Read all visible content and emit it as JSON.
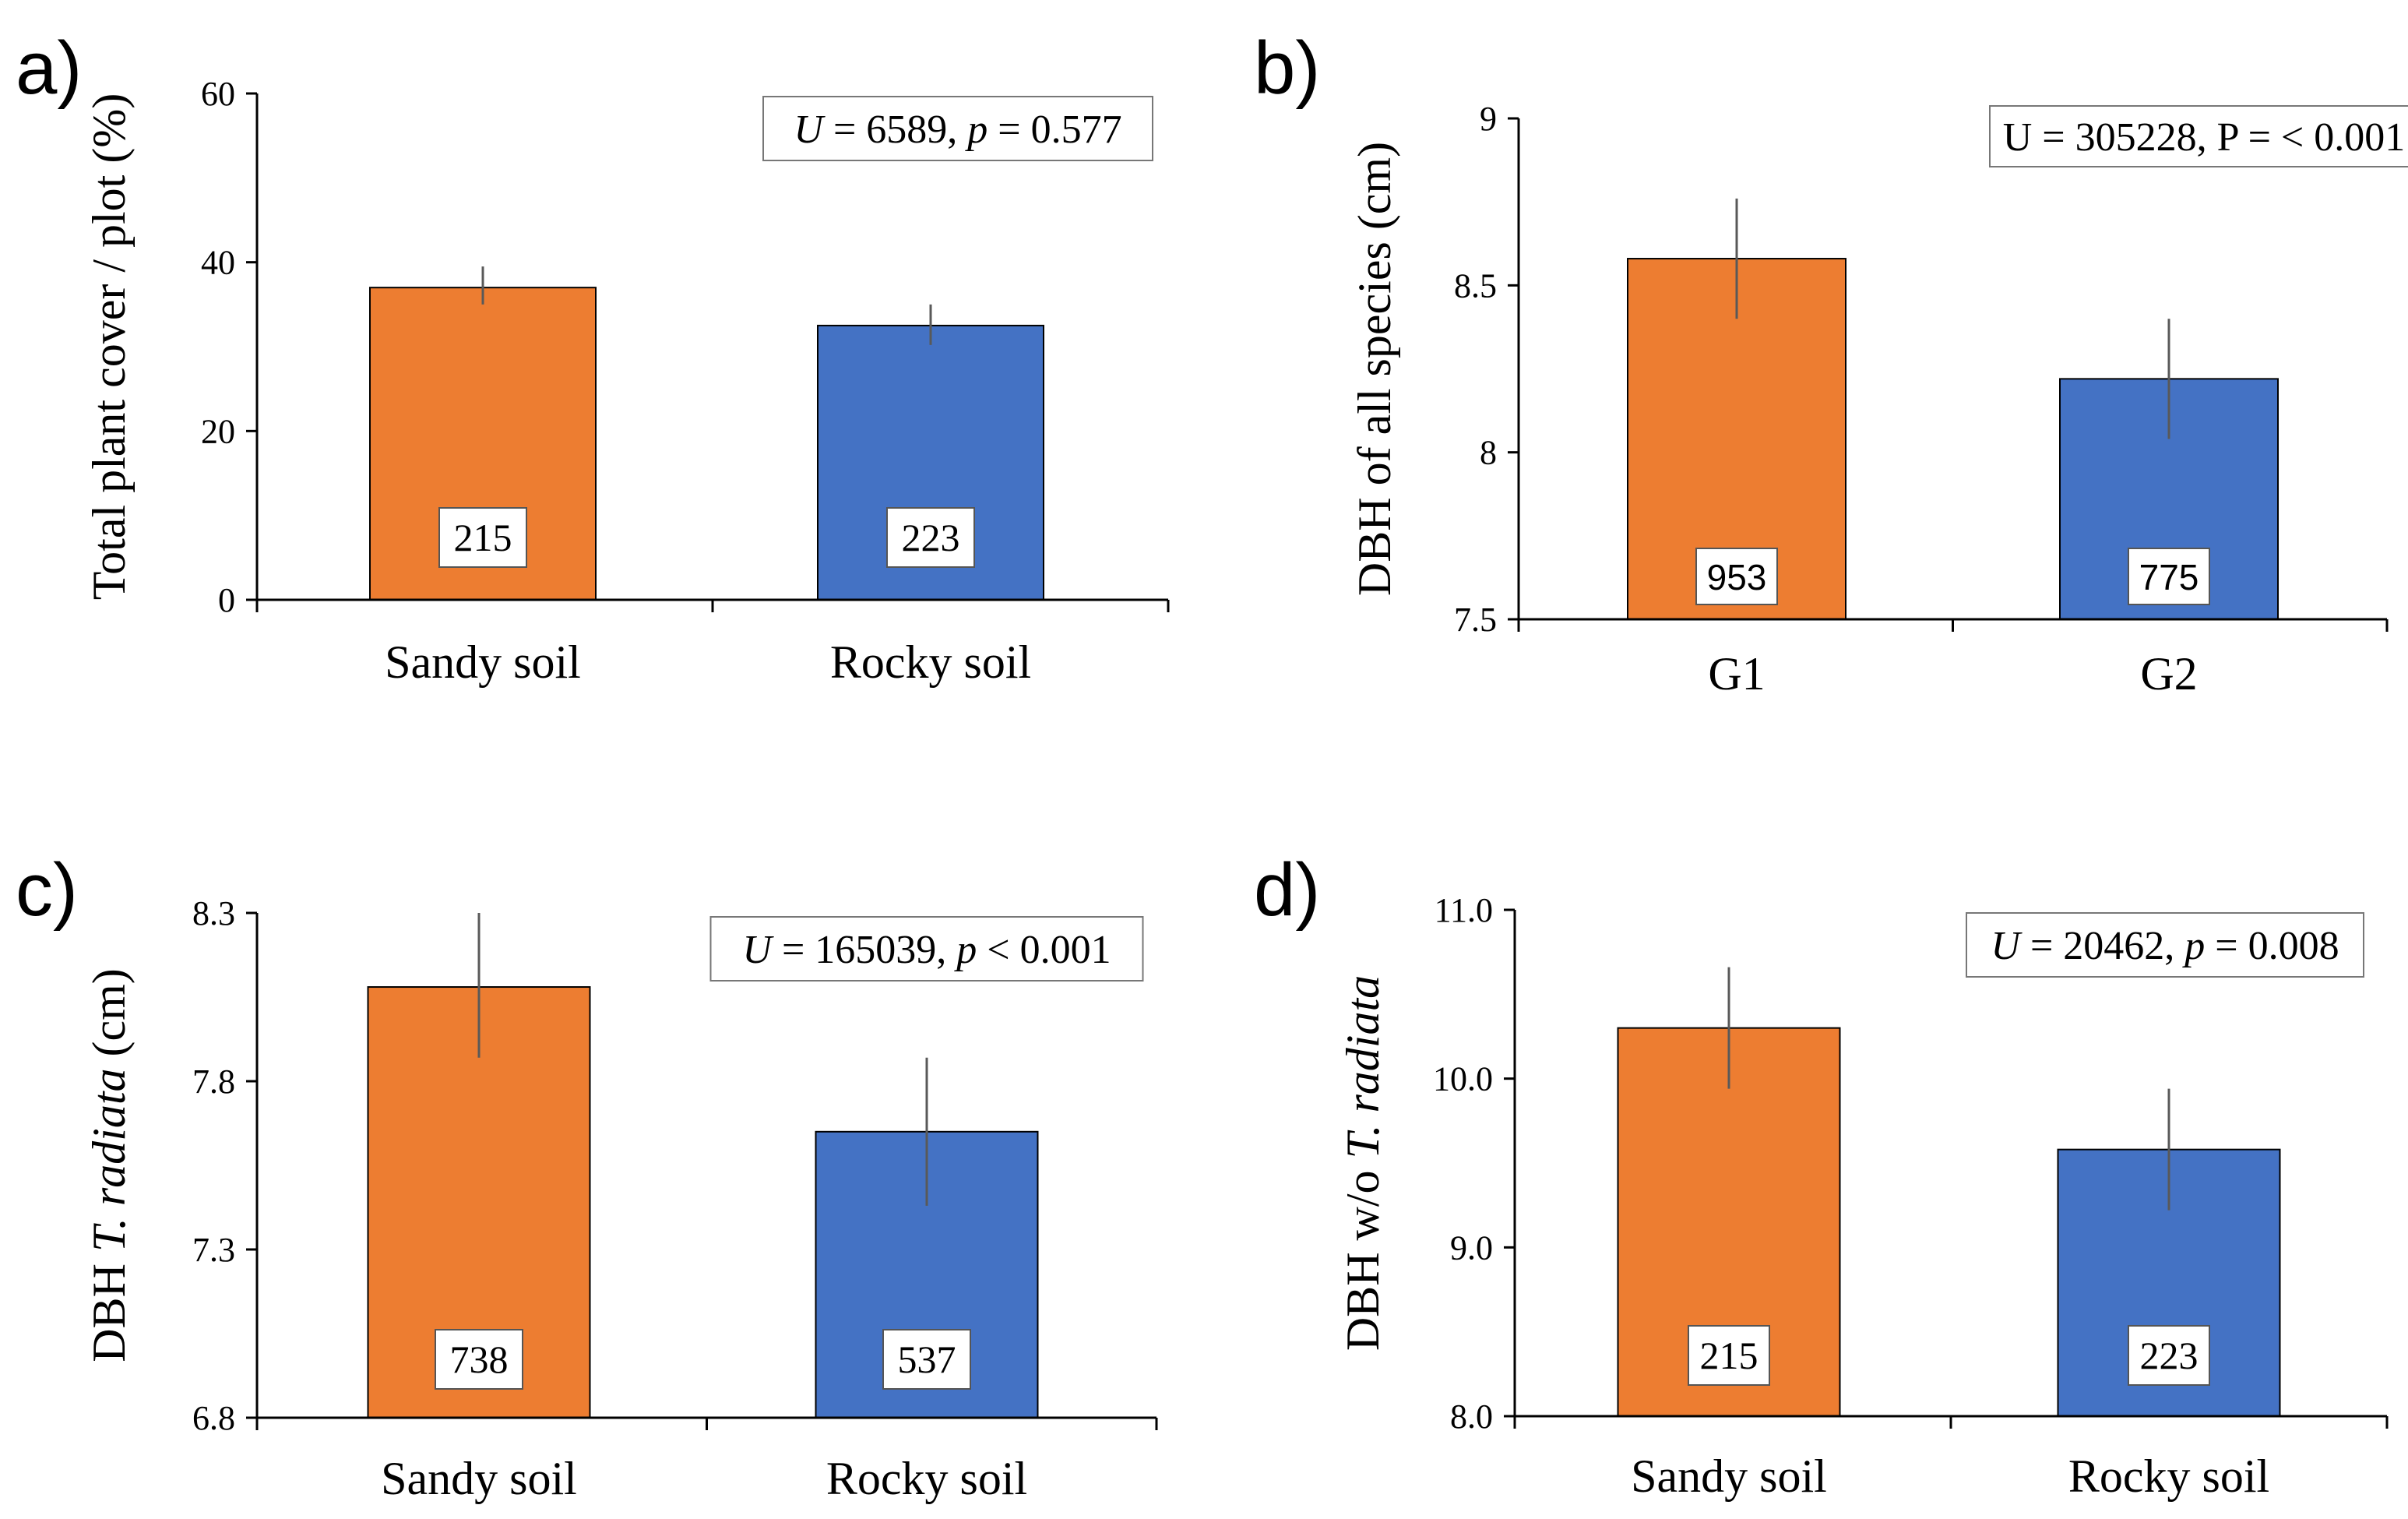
{
  "colors": {
    "orange": "#ED7D31",
    "blue": "#4472C4",
    "axis": "#000000",
    "errorbar": "#595959"
  },
  "chart_data": [
    {
      "type": "bar",
      "panel": "a)",
      "categories": [
        "Sandy soil",
        "Rocky soil"
      ],
      "values": [
        37,
        32.5
      ],
      "errors_upper": [
        39.5,
        35
      ],
      "errors_lower": [
        35,
        30.2
      ],
      "ylim": [
        0,
        60
      ],
      "yticks": [
        "0",
        "20",
        "40",
        "60"
      ],
      "ylabel": "Total plant cover / plot (%)",
      "ylabel_parts": [
        {
          "text": "Total plant cover / plot (%)",
          "italic": false
        }
      ],
      "sample_sizes": [
        "215",
        "223"
      ],
      "stat_parts": [
        {
          "text": "U",
          "italic": true
        },
        {
          "text": " = 6589, ",
          "italic": false
        },
        {
          "text": "p",
          "italic": true
        },
        {
          "text": " = 0.577",
          "italic": false
        }
      ],
      "label_font": "serif"
    },
    {
      "type": "bar",
      "panel": "b)",
      "categories": [
        "G1",
        "G2"
      ],
      "values": [
        8.58,
        8.22
      ],
      "errors_upper": [
        8.76,
        8.4
      ],
      "errors_lower": [
        8.4,
        8.04
      ],
      "ylim": [
        7.5,
        9
      ],
      "yticks": [
        "7.5",
        "8",
        "8.5",
        "9"
      ],
      "ylabel": "DBH of all species (cm)",
      "ylabel_parts": [
        {
          "text": "DBH of all species (cm)",
          "italic": false
        }
      ],
      "sample_sizes": [
        "953",
        "775"
      ],
      "stat_parts": [
        {
          "text": "U = 305228, P = < 0.001",
          "italic": false
        }
      ],
      "label_font": "sans"
    },
    {
      "type": "bar",
      "panel": "c)",
      "categories": [
        "Sandy soil",
        "Rocky soil"
      ],
      "values": [
        8.08,
        7.65
      ],
      "errors_upper": [
        8.3,
        7.87
      ],
      "errors_lower": [
        7.87,
        7.43
      ],
      "ylim": [
        6.8,
        8.3
      ],
      "yticks": [
        "6.8",
        "7.3",
        "7.8",
        "8.3"
      ],
      "ylabel": "DBH T. radiata (cm)",
      "ylabel_parts": [
        {
          "text": "DBH ",
          "italic": false
        },
        {
          "text": "T. radiata",
          "italic": true
        },
        {
          "text": " (cm)",
          "italic": false
        }
      ],
      "sample_sizes": [
        "738",
        "537"
      ],
      "stat_parts": [
        {
          "text": "U",
          "italic": true
        },
        {
          "text": " = 165039, ",
          "italic": false
        },
        {
          "text": "p",
          "italic": true
        },
        {
          "text": " < 0.001",
          "italic": false
        }
      ],
      "label_font": "serif"
    },
    {
      "type": "bar",
      "panel": "d)",
      "categories": [
        "Sandy soil",
        "Rocky soil"
      ],
      "values": [
        10.3,
        9.58
      ],
      "errors_upper": [
        10.66,
        9.94
      ],
      "errors_lower": [
        9.94,
        9.22
      ],
      "ylim": [
        8,
        11
      ],
      "yticks": [
        "8.0",
        "9.0",
        "10.0",
        "11.0"
      ],
      "ylabel": "DBH w/o T. radiata",
      "ylabel_parts": [
        {
          "text": "DBH w/o ",
          "italic": false
        },
        {
          "text": "T. radiata",
          "italic": true
        }
      ],
      "sample_sizes": [
        "215",
        "223"
      ],
      "stat_parts": [
        {
          "text": "U",
          "italic": true
        },
        {
          "text": " = 20462, ",
          "italic": false
        },
        {
          "text": "p",
          "italic": true
        },
        {
          "text": " = 0.008",
          "italic": false
        }
      ],
      "label_font": "serif"
    }
  ]
}
